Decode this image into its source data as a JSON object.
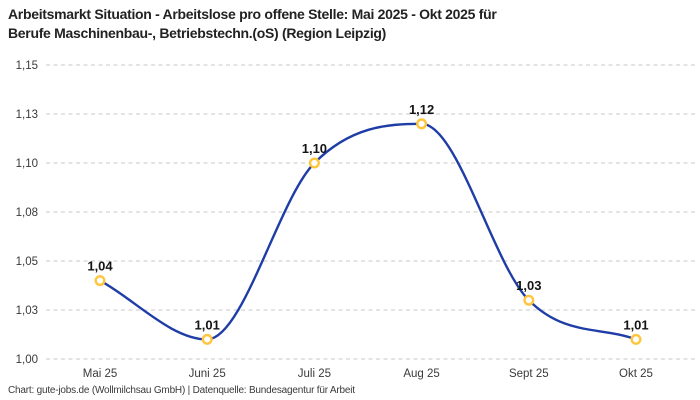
{
  "header": {
    "title_lines": [
      "Arbeitsmarkt Situation - Arbeitslose pro offene Stelle: Mai 2025 - Okt 2025 für",
      "Berufe Maschinenbau-, Betriebstechn.(oS) (Region Leipzig)"
    ]
  },
  "footer": {
    "text": "Chart: gute-jobs.de (Wollmilchsau GmbH) | Datenquelle: Bundesagentur für Arbeit"
  },
  "chart_data": {
    "type": "line",
    "title": "Arbeitsmarkt Situation - Arbeitslose pro offene Stelle: Mai 2025 - Okt 2025 für Berufe Maschinenbau-, Betriebstechn.(oS) (Region Leipzig)",
    "categories": [
      "Mai 25",
      "Juni 25",
      "Juli 25",
      "Aug 25",
      "Sept 25",
      "Okt 25"
    ],
    "values": [
      1.04,
      1.01,
      1.1,
      1.12,
      1.03,
      1.01
    ],
    "point_labels": [
      "1,04",
      "1,01",
      "1,10",
      "1,12",
      "1,03",
      "1,01"
    ],
    "y_ticks": [
      {
        "value": 1.0,
        "label": "1,00"
      },
      {
        "value": 1.025,
        "label": "1,03"
      },
      {
        "value": 1.05,
        "label": "1,05"
      },
      {
        "value": 1.075,
        "label": "1,08"
      },
      {
        "value": 1.1,
        "label": "1,10"
      },
      {
        "value": 1.125,
        "label": "1,13"
      },
      {
        "value": 1.15,
        "label": "1,15"
      }
    ],
    "ylim": [
      1.0,
      1.15
    ],
    "xlabel": "",
    "ylabel": "",
    "grid": "horizontal-dashed",
    "legend": "none",
    "smooth": true,
    "colors": {
      "line": "#1f3da6",
      "marker_ring": "#ffc53d",
      "marker_fill": "#ffffff",
      "grid": "#c9c9c9",
      "tick_text": "#3a3a3a",
      "point_label_text": "#141414"
    }
  }
}
